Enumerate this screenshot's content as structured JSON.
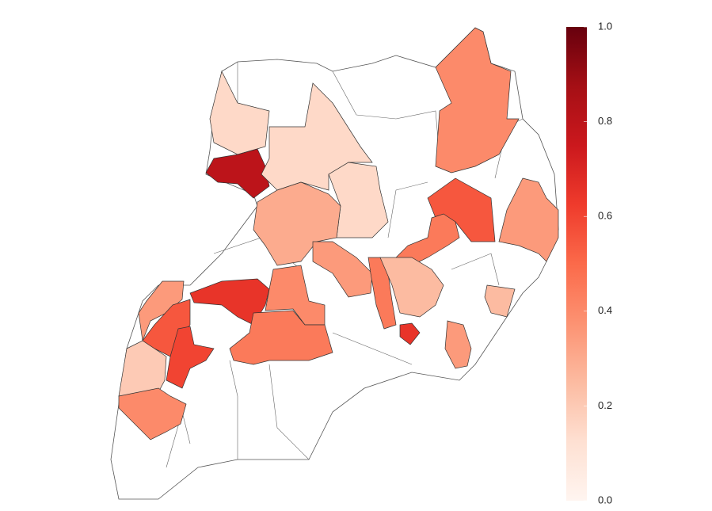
{
  "chart_data": {
    "type": "choropleth",
    "colormap": "Reds",
    "values": [
      0.15,
      0.8,
      0.15,
      0.15,
      0.3,
      0.4,
      0.55,
      0.35,
      0.45,
      0.35,
      0.45,
      0.25,
      0.65,
      0.25,
      0.35,
      0.65,
      0.4,
      0.45,
      0.35,
      0.55,
      0.6,
      0.2,
      0.4
    ],
    "clim": [
      0,
      1
    ],
    "cticks": [
      {
        "value": 0,
        "label": "0.0"
      },
      {
        "value": 0.2,
        "label": "0.2"
      },
      {
        "value": 0.4,
        "label": "0.4"
      },
      {
        "value": 0.6,
        "label": "0.6"
      },
      {
        "value": 0.8,
        "label": "0.8"
      },
      {
        "value": 1,
        "label": "1.0"
      }
    ]
  }
}
